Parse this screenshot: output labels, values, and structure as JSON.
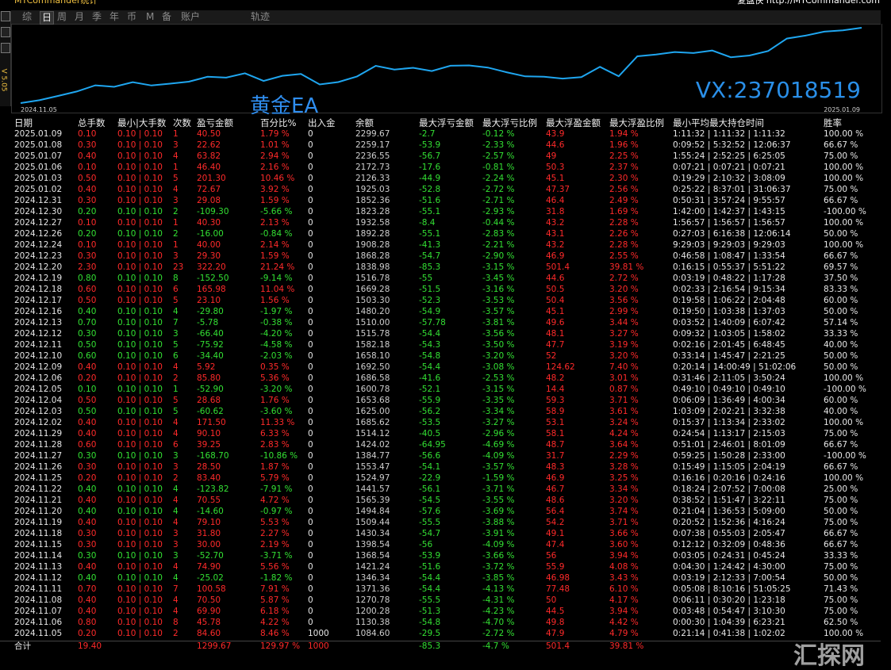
{
  "header": {
    "title": "MTCommander统计",
    "brand": "复盘侠 http://MTCommander.com",
    "version": "V 5.05",
    "tabs": [
      "综",
      "日",
      "周",
      "月",
      "季",
      "年",
      "币",
      "M",
      "备",
      "账户",
      "轨迹"
    ]
  },
  "chart": {
    "start": "2024.11.05",
    "end": "2025.01.09",
    "overlay": "黄金EA",
    "contact": "VX:237018519"
  },
  "table": {
    "columns": [
      "日期",
      "总手数",
      "最小|大手数",
      "次数",
      "盈亏金额",
      "百分比%",
      "出入金",
      "余额",
      "最大浮亏金额",
      "最大浮亏比例",
      "最大浮盈金额",
      "最大浮盈比例",
      "最小平均最大持仓时间",
      "胜率"
    ],
    "rows": [
      [
        "2025.01.09",
        "0.10",
        "0.10 | 0.10",
        "1",
        "40.50",
        "1.79 %",
        "0",
        "2299.67",
        "-2.7",
        "-0.12 %",
        "43.9",
        "1.94 %",
        "1:11:32 | 1:11:32 | 1:11:32",
        "100.00 %"
      ],
      [
        "2025.01.08",
        "0.30",
        "0.10 | 0.10",
        "3",
        "22.62",
        "1.01 %",
        "0",
        "2259.17",
        "-53.9",
        "-2.33 %",
        "44.6",
        "1.96 %",
        "0:09:52 | 5:32:52 | 12:06:37",
        "66.67 %"
      ],
      [
        "2025.01.07",
        "0.40",
        "0.10 | 0.10",
        "4",
        "63.82",
        "2.94 %",
        "0",
        "2236.55",
        "-56.7",
        "-2.57 %",
        "49",
        "2.25 %",
        "1:55:24 | 2:52:25 | 6:25:05",
        "75.00 %"
      ],
      [
        "2025.01.06",
        "0.10",
        "0.10 | 0.10",
        "1",
        "46.40",
        "2.16 %",
        "0",
        "2172.73",
        "-17.6",
        "-0.81 %",
        "50.3",
        "2.37 %",
        "0:07:21 | 0:07:21 | 0:07:21",
        "100.00 %"
      ],
      [
        "2025.01.03",
        "0.50",
        "0.10 | 0.10",
        "5",
        "201.30",
        "10.46 %",
        "0",
        "2126.33",
        "-44.9",
        "-2.24 %",
        "45.1",
        "2.30 %",
        "0:19:29 | 2:10:32 | 3:08:09",
        "100.00 %"
      ],
      [
        "2025.01.02",
        "0.40",
        "0.10 | 0.10",
        "4",
        "72.67",
        "3.92 %",
        "0",
        "1925.03",
        "-52.8",
        "-2.72 %",
        "47.37",
        "2.56 %",
        "0:25:22 | 8:37:01 | 31:06:37",
        "75.00 %"
      ],
      [
        "2024.12.31",
        "0.30",
        "0.10 | 0.10",
        "3",
        "29.08",
        "1.59 %",
        "0",
        "1852.36",
        "-51.6",
        "-2.71 %",
        "46.4",
        "2.49 %",
        "0:50:31 | 3:57:24 | 9:55:57",
        "66.67 %"
      ],
      [
        "2024.12.30",
        "0.20",
        "0.10 | 0.10",
        "2",
        "-109.30",
        "-5.66 %",
        "0",
        "1823.28",
        "-55.1",
        "-2.93 %",
        "31.8",
        "1.69 %",
        "1:42:00 | 1:42:37 | 1:43:15",
        "-100.00 %"
      ],
      [
        "2024.12.27",
        "0.10",
        "0.10 | 0.10",
        "1",
        "40.30",
        "2.13 %",
        "0",
        "1932.58",
        "-8.4",
        "-0.44 %",
        "43.2",
        "2.28 %",
        "1:56:57 | 1:56:57 | 1:56:57",
        "100.00 %"
      ],
      [
        "2024.12.26",
        "0.20",
        "0.10 | 0.10",
        "2",
        "-16.00",
        "-0.84 %",
        "0",
        "1892.28",
        "-55.1",
        "-2.83 %",
        "43.1",
        "2.26 %",
        "0:27:03 | 6:16:38 | 12:06:14",
        "50.00 %"
      ],
      [
        "2024.12.24",
        "0.10",
        "0.10 | 0.10",
        "1",
        "40.00",
        "2.14 %",
        "0",
        "1908.28",
        "-41.3",
        "-2.21 %",
        "43.2",
        "2.28 %",
        "9:29:03 | 9:29:03 | 9:29:03",
        "100.00 %"
      ],
      [
        "2024.12.23",
        "0.30",
        "0.10 | 0.10",
        "3",
        "29.30",
        "1.59 %",
        "0",
        "1868.28",
        "-54.7",
        "-2.90 %",
        "46.9",
        "2.55 %",
        "0:46:58 | 1:08:47 | 1:33:54",
        "66.67 %"
      ],
      [
        "2024.12.20",
        "2.30",
        "0.10 | 0.10",
        "23",
        "322.20",
        "21.24 %",
        "0",
        "1838.98",
        "-85.3",
        "-3.15 %",
        "501.4",
        "39.81 %",
        "0:16:15 | 0:55:37 | 5:51:22",
        "69.57 %"
      ],
      [
        "2024.12.19",
        "0.80",
        "0.10 | 0.10",
        "8",
        "-152.50",
        "-9.14 %",
        "0",
        "1516.78",
        "-55",
        "-3.45 %",
        "44.6",
        "2.72 %",
        "0:03:19 | 0:48:22 | 1:17:28",
        "37.50 %"
      ],
      [
        "2024.12.18",
        "0.60",
        "0.10 | 0.10",
        "6",
        "165.98",
        "11.04 %",
        "0",
        "1669.28",
        "-51.5",
        "-3.16 %",
        "50.5",
        "3.20 %",
        "0:02:33 | 2:16:54 | 9:15:34",
        "83.33 %"
      ],
      [
        "2024.12.17",
        "0.50",
        "0.10 | 0.10",
        "5",
        "23.10",
        "1.56 %",
        "0",
        "1503.30",
        "-52.3",
        "-3.53 %",
        "50.4",
        "3.56 %",
        "0:19:58 | 1:06:22 | 2:04:48",
        "60.00 %"
      ],
      [
        "2024.12.16",
        "0.40",
        "0.10 | 0.10",
        "4",
        "-29.80",
        "-1.97 %",
        "0",
        "1480.20",
        "-54.9",
        "-3.57 %",
        "45.1",
        "2.99 %",
        "0:19:50 | 1:03:38 | 1:37:03",
        "50.00 %"
      ],
      [
        "2024.12.13",
        "0.70",
        "0.10 | 0.10",
        "7",
        "-5.78",
        "-0.38 %",
        "0",
        "1510.00",
        "-57.78",
        "-3.81 %",
        "49.6",
        "3.44 %",
        "0:03:52 | 1:40:09 | 6:07:42",
        "57.14 %"
      ],
      [
        "2024.12.12",
        "0.30",
        "0.10 | 0.10",
        "3",
        "-66.40",
        "-4.20 %",
        "0",
        "1515.78",
        "-54.4",
        "-3.56 %",
        "48.1",
        "3.27 %",
        "0:09:32 | 1:03:05 | 1:58:02",
        "33.33 %"
      ],
      [
        "2024.12.11",
        "0.50",
        "0.10 | 0.10",
        "5",
        "-75.92",
        "-4.58 %",
        "0",
        "1582.18",
        "-54.3",
        "-3.50 %",
        "47.7",
        "3.19 %",
        "0:02:16 | 2:01:45 | 6:48:45",
        "40.00 %"
      ],
      [
        "2024.12.10",
        "0.60",
        "0.10 | 0.10",
        "6",
        "-34.40",
        "-2.03 %",
        "0",
        "1658.10",
        "-54.8",
        "-3.20 %",
        "52",
        "3.20 %",
        "0:33:14 | 1:45:47 | 2:21:25",
        "50.00 %"
      ],
      [
        "2024.12.09",
        "0.40",
        "0.10 | 0.10",
        "4",
        "5.92",
        "0.35 %",
        "0",
        "1692.50",
        "-54.4",
        "-3.08 %",
        "124.62",
        "7.40 %",
        "0:20:14 | 14:00:49 | 51:02:06",
        "50.00 %"
      ],
      [
        "2024.12.06",
        "0.20",
        "0.10 | 0.10",
        "2",
        "85.80",
        "5.36 %",
        "0",
        "1686.58",
        "-41.6",
        "-2.53 %",
        "48.2",
        "3.01 %",
        "0:31:46 | 2:11:05 | 3:50:24",
        "100.00 %"
      ],
      [
        "2024.12.05",
        "0.10",
        "0.10 | 0.10",
        "1",
        "-52.90",
        "-3.20 %",
        "0",
        "1600.78",
        "-52.1",
        "-3.15 %",
        "14.4",
        "0.87 %",
        "0:49:10 | 0:49:10 | 0:49:10",
        "-100.00 %"
      ],
      [
        "2024.12.04",
        "0.50",
        "0.10 | 0.10",
        "5",
        "28.68",
        "1.76 %",
        "0",
        "1653.68",
        "-55.9",
        "-3.35 %",
        "59.3",
        "3.71 %",
        "0:06:09 | 1:36:49 | 4:00:34",
        "60.00 %"
      ],
      [
        "2024.12.03",
        "0.50",
        "0.10 | 0.10",
        "5",
        "-60.62",
        "-3.60 %",
        "0",
        "1625.00",
        "-56.2",
        "-3.34 %",
        "58.9",
        "3.61 %",
        "1:03:09 | 2:02:21 | 3:32:38",
        "40.00 %"
      ],
      [
        "2024.12.02",
        "0.40",
        "0.10 | 0.10",
        "4",
        "171.50",
        "11.33 %",
        "0",
        "1685.62",
        "-53.5",
        "-3.27 %",
        "53.1",
        "3.24 %",
        "0:15:37 | 1:13:34 | 2:33:02",
        "100.00 %"
      ],
      [
        "2024.11.29",
        "0.40",
        "0.10 | 0.10",
        "4",
        "90.10",
        "6.33 %",
        "0",
        "1514.12",
        "-40.5",
        "-2.96 %",
        "58.1",
        "4.24 %",
        "0:24:54 | 1:13:17 | 2:15:03",
        "75.00 %"
      ],
      [
        "2024.11.28",
        "0.60",
        "0.10 | 0.10",
        "6",
        "39.25",
        "2.83 %",
        "0",
        "1424.02",
        "-64.95",
        "-4.69 %",
        "48.7",
        "3.64 %",
        "0:51:01 | 2:46:01 | 8:01:09",
        "66.67 %"
      ],
      [
        "2024.11.27",
        "0.30",
        "0.10 | 0.10",
        "3",
        "-168.70",
        "-10.86 %",
        "0",
        "1384.77",
        "-56.6",
        "-4.09 %",
        "31.7",
        "2.29 %",
        "0:59:25 | 1:50:28 | 2:33:00",
        "-100.00 %"
      ],
      [
        "2024.11.26",
        "0.30",
        "0.10 | 0.10",
        "3",
        "28.50",
        "1.87 %",
        "0",
        "1553.47",
        "-54.1",
        "-3.57 %",
        "48.3",
        "3.28 %",
        "0:15:49 | 1:15:05 | 2:04:19",
        "66.67 %"
      ],
      [
        "2024.11.25",
        "0.20",
        "0.10 | 0.10",
        "2",
        "83.40",
        "5.79 %",
        "0",
        "1524.97",
        "-22.9",
        "-1.59 %",
        "46.9",
        "3.25 %",
        "0:16:16 | 0:20:16 | 0:24:16",
        "100.00 %"
      ],
      [
        "2024.11.22",
        "0.40",
        "0.10 | 0.10",
        "4",
        "-123.82",
        "-7.91 %",
        "0",
        "1441.57",
        "-56.1",
        "-3.71 %",
        "46.7",
        "3.34 %",
        "0:18:24 | 2:07:52 | 7:00:08",
        "25.00 %"
      ],
      [
        "2024.11.21",
        "0.40",
        "0.10 | 0.10",
        "4",
        "70.55",
        "4.72 %",
        "0",
        "1565.39",
        "-54.5",
        "-3.55 %",
        "48.6",
        "3.20 %",
        "0:38:52 | 1:51:47 | 3:22:11",
        "75.00 %"
      ],
      [
        "2024.11.20",
        "0.40",
        "0.10 | 0.10",
        "4",
        "-14.60",
        "-0.97 %",
        "0",
        "1494.84",
        "-57.6",
        "-3.69 %",
        "56.4",
        "3.74 %",
        "0:21:04 | 1:36:53 | 5:09:00",
        "50.00 %"
      ],
      [
        "2024.11.19",
        "0.40",
        "0.10 | 0.10",
        "4",
        "79.10",
        "5.53 %",
        "0",
        "1509.44",
        "-55.5",
        "-3.88 %",
        "54.2",
        "3.71 %",
        "0:20:52 | 1:52:36 | 4:16:24",
        "75.00 %"
      ],
      [
        "2024.11.18",
        "0.30",
        "0.10 | 0.10",
        "3",
        "31.80",
        "2.27 %",
        "0",
        "1430.34",
        "-54.7",
        "-3.91 %",
        "49.1",
        "3.66 %",
        "0:07:38 | 0:55:03 | 2:05:47",
        "66.67 %"
      ],
      [
        "2024.11.15",
        "0.30",
        "0.10 | 0.10",
        "3",
        "30.00",
        "2.19 %",
        "0",
        "1398.54",
        "-56",
        "-4.09 %",
        "47.4",
        "3.60 %",
        "0:12:12 | 0:32:09 | 0:48:36",
        "66.67 %"
      ],
      [
        "2024.11.14",
        "0.30",
        "0.10 | 0.10",
        "3",
        "-52.70",
        "-3.71 %",
        "0",
        "1368.54",
        "-53.9",
        "-3.66 %",
        "56",
        "3.94 %",
        "0:03:05 | 0:24:31 | 0:45:24",
        "33.33 %"
      ],
      [
        "2024.11.13",
        "0.40",
        "0.10 | 0.10",
        "4",
        "74.90",
        "5.56 %",
        "0",
        "1421.24",
        "-51.6",
        "-3.72 %",
        "55.9",
        "4.08 %",
        "0:04:30 | 1:24:42 | 4:30:00",
        "75.00 %"
      ],
      [
        "2024.11.12",
        "0.40",
        "0.10 | 0.10",
        "4",
        "-25.02",
        "-1.82 %",
        "0",
        "1346.34",
        "-54.4",
        "-3.85 %",
        "46.98",
        "3.43 %",
        "0:03:19 | 2:12:33 | 7:00:54",
        "50.00 %"
      ],
      [
        "2024.11.11",
        "0.70",
        "0.10 | 0.10",
        "7",
        "100.58",
        "7.91 %",
        "0",
        "1371.36",
        "-54.4",
        "-4.13 %",
        "77.48",
        "6.10 %",
        "0:05:08 | 8:10:16 | 51:05:25",
        "71.43 %"
      ],
      [
        "2024.11.08",
        "0.40",
        "0.10 | 0.10",
        "4",
        "70.50",
        "5.87 %",
        "0",
        "1270.78",
        "-55.5",
        "-4.31 %",
        "50",
        "4.17 %",
        "0:06:11 | 0:30:20 | 1:23:18",
        "75.00 %"
      ],
      [
        "2024.11.07",
        "0.40",
        "0.10 | 0.10",
        "4",
        "69.90",
        "6.18 %",
        "0",
        "1200.28",
        "-51.3",
        "-4.23 %",
        "44.5",
        "3.94 %",
        "0:03:48 | 0:54:47 | 3:10:30",
        "75.00 %"
      ],
      [
        "2024.11.06",
        "0.80",
        "0.10 | 0.10",
        "8",
        "45.78",
        "4.22 %",
        "0",
        "1130.38",
        "-54.8",
        "-4.70 %",
        "49.8",
        "4.42 %",
        "0:00:30 | 1:04:39 | 6:23:21",
        "62.50 %"
      ],
      [
        "2024.11.05",
        "0.20",
        "0.10 | 0.10",
        "2",
        "84.60",
        "8.46 %",
        "1000",
        "1084.60",
        "-29.5",
        "-2.72 %",
        "47.9",
        "4.79 %",
        "0:21:14 | 0:41:38 | 1:02:02",
        "100.00 %"
      ]
    ],
    "total": {
      "label": "合计",
      "lots": "19.40",
      "pnl": "1299.67",
      "pct": "129.97 %",
      "io": "1000",
      "max_loss": "-85.3",
      "max_loss_pct": "-4.7 %",
      "max_win": "501.4",
      "max_win_pct": "39.81 %"
    }
  },
  "watermark": "汇探网"
}
